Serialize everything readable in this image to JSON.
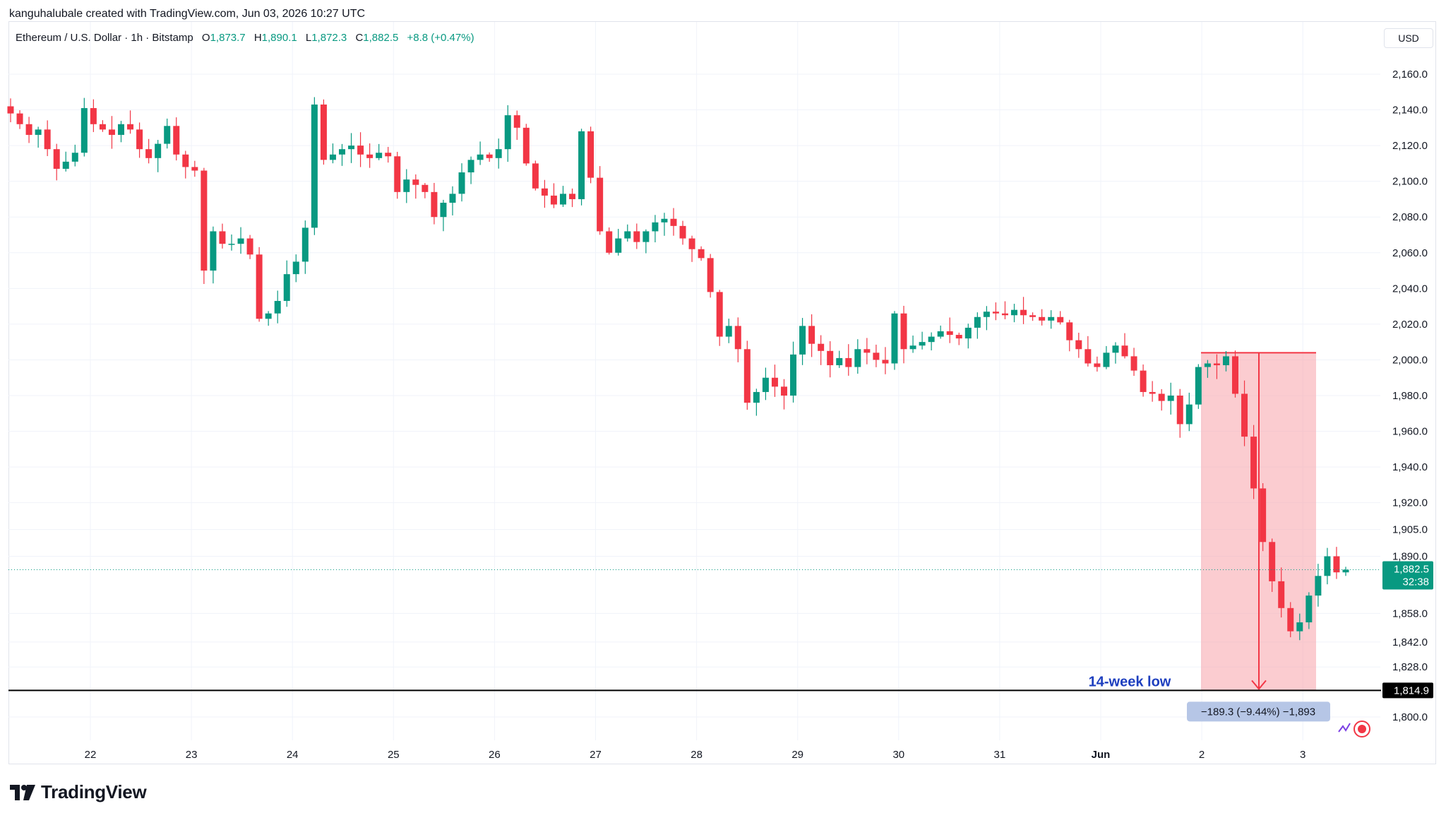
{
  "header": {
    "credit": "kanguhalubale created with TradingView.com, Jun 03, 2026 10:27 UTC",
    "symbol": "Ethereum / U.S. Dollar · 1h · Bitstamp",
    "ohlc": [
      {
        "label": "O",
        "value": "1,873.7"
      },
      {
        "label": "H",
        "value": "1,890.1"
      },
      {
        "label": "L",
        "value": "1,872.3"
      },
      {
        "label": "C",
        "value": "1,882.5"
      }
    ],
    "change": "+8.8 (+0.47%)"
  },
  "currency_button": "USD",
  "brand": "TradingView",
  "colors": {
    "up": "#089981",
    "down": "#f23645",
    "measure_fill": "#f7a3aa",
    "annotation": "#1e3fbf"
  },
  "chart_data": {
    "type": "candlestick",
    "y_axis_ticks": [
      "2,160.0",
      "2,140.0",
      "2,120.0",
      "2,100.0",
      "2,080.0",
      "2,060.0",
      "2,040.0",
      "2,020.0",
      "2,000.0",
      "1,980.0",
      "1,960.0",
      "1,940.0",
      "1,920.0",
      "1,905.0",
      "1,890.0",
      "1,858.0",
      "1,842.0",
      "1,828.0",
      "1,800.0"
    ],
    "x_axis_labels": [
      "22",
      "23",
      "24",
      "25",
      "26",
      "27",
      "28",
      "29",
      "30",
      "31",
      "Jun",
      "2",
      "3"
    ],
    "close_series": [
      2138,
      2132,
      2126,
      2129,
      2118,
      2107,
      2111,
      2116,
      2141,
      2132,
      2129,
      2126,
      2132,
      2129,
      2118,
      2113,
      2121,
      2131,
      2115,
      2108,
      2106,
      2050,
      2072,
      2065,
      2065,
      2068,
      2059,
      2023,
      2026,
      2033,
      2048,
      2055,
      2074,
      2143,
      2112,
      2115,
      2118,
      2120,
      2115,
      2113,
      2116,
      2114,
      2094,
      2101,
      2098,
      2094,
      2080,
      2088,
      2093,
      2105,
      2112,
      2115,
      2113,
      2118,
      2137,
      2130,
      2110,
      2096,
      2092,
      2087,
      2093,
      2090,
      2128,
      2102,
      2072,
      2060,
      2068,
      2072,
      2066,
      2072,
      2077,
      2079,
      2075,
      2068,
      2062,
      2057,
      2038,
      2013,
      2019,
      2006,
      1976,
      1982,
      1990,
      1985,
      1980,
      2003,
      2019,
      2009,
      2005,
      1997,
      2001,
      1996,
      2006,
      2004,
      2000,
      1998,
      2026,
      2006,
      2008,
      2010,
      2013,
      2016,
      2014,
      2012,
      2018,
      2024,
      2027,
      2026,
      2025,
      2028,
      2025,
      2024,
      2022,
      2024,
      2021,
      2011,
      2006,
      1998,
      1996,
      2004,
      2008,
      2002,
      1994,
      1982,
      1981,
      1977,
      1980,
      1964,
      1975,
      1996,
      1998,
      1997,
      2002,
      1981,
      1957,
      1928,
      1898,
      1876,
      1861,
      1848,
      1853,
      1868,
      1879,
      1890,
      1881,
      1882.5
    ],
    "last_price": "1,882.5",
    "countdown": "32:38",
    "support_level": 1814.9,
    "support_label": "1,814.9",
    "annotation": "14-week low",
    "measure": {
      "high": 2004,
      "low": 1814.9,
      "label": "−189.3 (−9.44%) −1,893"
    }
  }
}
